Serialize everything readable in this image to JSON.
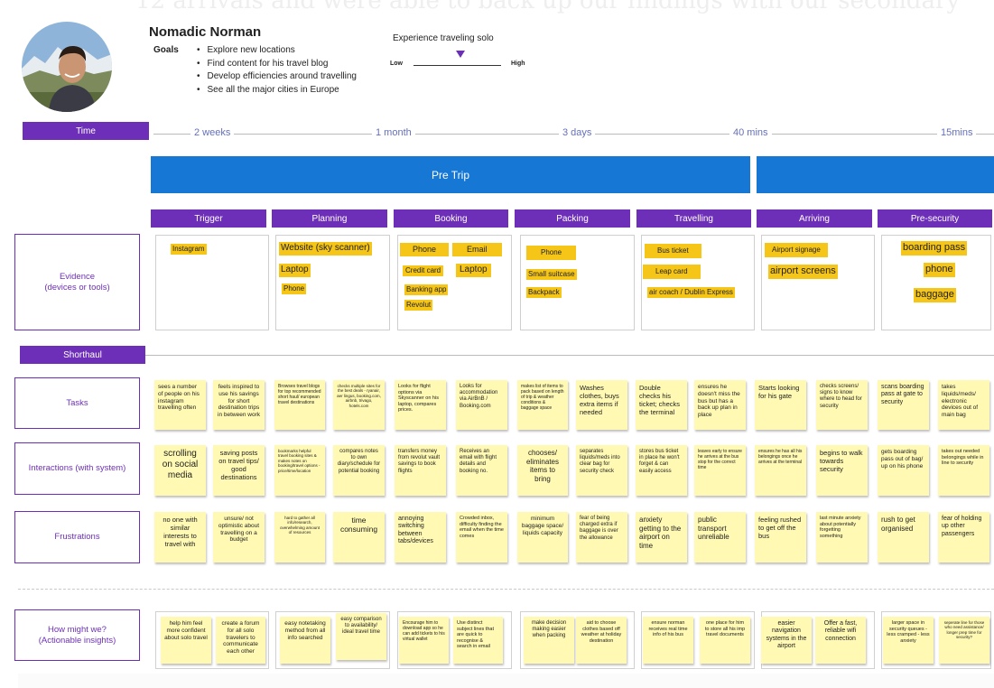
{
  "persona": {
    "name": "Nomadic Norman",
    "goals_label": "Goals",
    "goals": [
      "Explore new locations",
      "Find content for his travel blog",
      "Develop efficiencies around travelling",
      "See all the major cities in Europe"
    ]
  },
  "background_text": "12 arrivals and were able to back up our findings with our secondary",
  "scale": {
    "title": "Experience traveling solo",
    "low": "Low",
    "high": "High",
    "level": 0.5
  },
  "time": {
    "label": "Time",
    "durations": [
      "2 weeks",
      "1 month",
      "3 days",
      "40 mins",
      "15mins"
    ]
  },
  "phases": [
    "Pre Trip",
    ""
  ],
  "stages": [
    "Trigger",
    "Planning",
    "Booking",
    "Packing",
    "Travelling",
    "Arriving",
    "Pre-security"
  ],
  "rows": {
    "evidence": "Evidence\n(devices or tools)",
    "shorthaul": "Shorthaul",
    "tasks": "Tasks",
    "interactions": "Interactions (with system)",
    "frustrations": "Frustrations",
    "insights": "How might we?\n(Actionable insights)"
  },
  "evidence": {
    "trigger": [
      "Instagram"
    ],
    "planning": [
      "Website (sky scanner)",
      "Laptop",
      "Phone"
    ],
    "booking": [
      "Phone",
      "Email",
      "Credit card",
      "Laptop",
      "Banking app",
      "Revolut"
    ],
    "packing": [
      "Phone",
      "Small suitcase",
      "Backpack"
    ],
    "travelling": [
      "Bus ticket",
      "Leap card",
      "air coach / Dublin Express"
    ],
    "arriving": [
      "Airport signage",
      "airport screens"
    ],
    "presecurity": [
      "boarding pass",
      "phone",
      "baggage"
    ]
  },
  "tasks": [
    "sees a number of people on his instagram travelling often",
    "feels inspired to use his savings for short destination trips in between work",
    "Browses travel blogs for top recommended short haul/ european travel destinations",
    "checks multiple sites for the best deals - ryanair, aer lingus, booking.com, airbnb, trivago, hotels.com",
    "Looks for flight options via Skyscanner on his laptop, compares prices.",
    "Looks for accommodation via AirBnB / Booking.com",
    "makes list of items to pack based on length of trip & weather conditions & baggage space",
    "Washes clothes, buys extra items if needed",
    "Double checks his ticket; checks the terminal",
    "ensures he doesn't miss the bus but has a back up plan in place",
    "Starts looking for his gate",
    "checks screens/ signs to know where to head for security",
    "scans boarding pass at gate to security",
    "takes liquids/meds/ electronic devices out of main bag"
  ],
  "interactions": [
    "scrolling on social media",
    "saving posts on travel tips/ good destinations",
    "bookmarks helpful travel booking sites & makes notes on booking/travel options - price/time/location",
    "compares notes to own diary/schedule for potential booking",
    "transfers money from revolut vault savings to book flights",
    "Receives an email with flight details and booking no.",
    "chooses/ eliminates items to bring",
    "separates liquids/meds into clear bag for security check",
    "stores bus ticket in place he won't forget & can easily access",
    "leaves early to ensure he arrives at the bus stop for the correct time",
    "ensures he has all his belongings once he arrives at the terminal",
    "begins to walk towards security",
    "gets boarding pass out of bag/ up on his phone",
    "takes out needed belongings while in line to security"
  ],
  "frustrations": [
    "no one with similar interests to travel with",
    "unsure/ not optimistic about travelling on a budget",
    "hard to gather all info/research, overwhelming amount of resources",
    "time consuming",
    "annoying switching between tabs/devices",
    "Crowded inbox, difficulty finding the email when the time comes",
    "minimum baggage space/ liquids capacity",
    "fear of being charged extra if baggage is over the allowance",
    "anxiety getting to the airport on time",
    "public transport unreliable",
    "feeling rushed to get off the bus",
    "last minute anxiety about potentially forgetting something",
    "rush to get organised",
    "fear of holding up other passengers"
  ],
  "insights": [
    "help him feel more confident about solo travel",
    "create a forum for all solo travelers to communicate each other",
    "easy notetaking method from all info searched",
    "easy comparison to availability/ ideal travel time",
    "Encourage him to download app so he can add tickets to his virtual wallet",
    "Use distinct subject lines that are quick to recognise & search in email",
    "make decision making easier when packing",
    "aid to choose clothes based off weather at holiday destination",
    "ensure norman receives real time info of his bus",
    "one place for him to store all his imp travel documents",
    "easier navigation systems in the airport",
    "Offer a fast, reliable wifi connection",
    "larger space in security queues - less cramped - less anxiety",
    "seperate line for those who need assistance/ longer prep time for security?"
  ],
  "colors": {
    "accent": "#6d2fb7",
    "phase": "#1677d4",
    "sticky": "#fff9b3",
    "highlight": "#f5c518"
  }
}
